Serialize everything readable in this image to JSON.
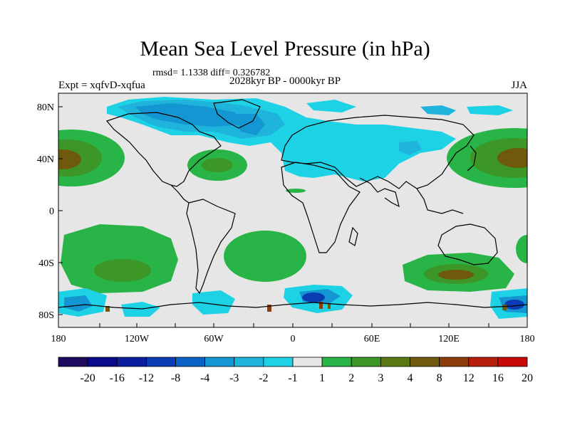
{
  "header": {
    "title": "Mean Sea Level Pressure (in hPa)",
    "stats": "rmsd= 1.1338 diff= 0.326782",
    "experiment": "Expt = xqfvD-xqfua",
    "period": "2028kyr BP - 0000kyr BP",
    "season": "JJA"
  },
  "axes": {
    "lat_ticks": [
      "80N",
      "40N",
      "0",
      "40S",
      "80S"
    ],
    "lon_ticks": [
      "180",
      "120W",
      "60W",
      "0",
      "60E",
      "120E",
      "180"
    ]
  },
  "colorbar": {
    "colors": [
      "#1e0a5e",
      "#0a0a8c",
      "#0a1e9e",
      "#0a3cb4",
      "#0a64c8",
      "#1496d2",
      "#1eb4dc",
      "#1ed2e6",
      "#e6e6e6",
      "#28b446",
      "#3c9628",
      "#5a7814",
      "#6e5a0a",
      "#8c3c0a",
      "#b41e0a",
      "#c80a0a"
    ],
    "labels": [
      "-20",
      "-16",
      "-12",
      "-8",
      "-4",
      "-3",
      "-2",
      "-1",
      "1",
      "2",
      "3",
      "4",
      "8",
      "12",
      "16",
      "20"
    ]
  },
  "palette": {
    "neutral": "#e6e6e6",
    "pos1": "#28b446",
    "pos2": "#3c9628",
    "pos3": "#6e5a0a",
    "pos4": "#8c3c0a",
    "neg1": "#1ed2e6",
    "neg2": "#1eb4dc",
    "neg3": "#1496d2",
    "neg4": "#0a64c8",
    "neg5": "#0a3cb4",
    "neg6": "#1e0a5e"
  }
}
